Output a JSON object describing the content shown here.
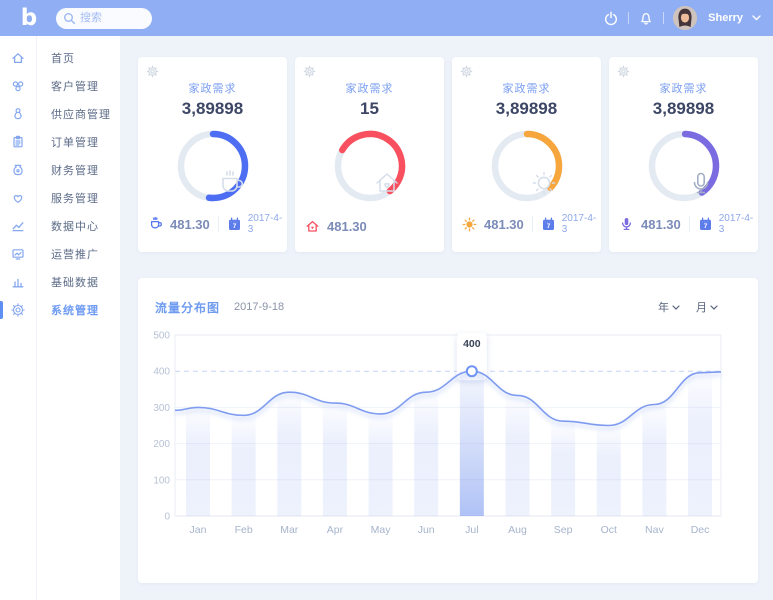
{
  "topbar": {
    "logo_text": "b",
    "search_placeholder": "搜索",
    "user_name": "Sherry"
  },
  "sidebar": {
    "items": [
      {
        "label": "首页",
        "icon": "home-icon",
        "active": false
      },
      {
        "label": "客户管理",
        "icon": "customers-icon",
        "active": false
      },
      {
        "label": "供应商管理",
        "icon": "supplier-icon",
        "active": false
      },
      {
        "label": "订单管理",
        "icon": "orders-icon",
        "active": false
      },
      {
        "label": "财务管理",
        "icon": "finance-icon",
        "active": false
      },
      {
        "label": "服务管理",
        "icon": "service-icon",
        "active": false
      },
      {
        "label": "数据中心",
        "icon": "data-center-icon",
        "active": false
      },
      {
        "label": "运营推广",
        "icon": "promotion-icon",
        "active": false
      },
      {
        "label": "基础数据",
        "icon": "base-data-icon",
        "active": false
      },
      {
        "label": "系统管理",
        "icon": "system-icon",
        "active": true
      }
    ]
  },
  "stat_cards": [
    {
      "title": "家政需求",
      "value": "3,89898",
      "metric": "481.30",
      "date": "2017-4-3",
      "accent": "#4D6EF2",
      "donut_percent": 52,
      "donut_start_deg": -90,
      "icon": "coffee-cup-icon"
    },
    {
      "title": "家政需求",
      "value": "15",
      "metric": "481.30",
      "date": "",
      "accent": "#F8505F",
      "donut_percent": 56,
      "donut_start_deg": -150,
      "icon": "home-heart-icon"
    },
    {
      "title": "家政需求",
      "value": "3,89898",
      "metric": "481.30",
      "date": "2017-4-3",
      "accent": "#F6A63C",
      "donut_percent": 37,
      "donut_start_deg": -90,
      "icon": "sun-icon"
    },
    {
      "title": "家政需求",
      "value": "3,89898",
      "metric": "481.30",
      "date": "2017-4-3",
      "accent": "#7A6BE0",
      "donut_percent": 40,
      "donut_start_deg": -88,
      "icon": "microphone-icon"
    }
  ],
  "chart": {
    "title": "流量分布图",
    "date": "2017-9-18",
    "filters": [
      {
        "label": "年"
      },
      {
        "label": "月"
      }
    ],
    "tooltip": {
      "month": "Jul",
      "value": "400"
    }
  },
  "chart_data": {
    "type": "area",
    "title": "流量分布图",
    "categories": [
      "Jan",
      "Feb",
      "Mar",
      "Apr",
      "May",
      "Jun",
      "Jul",
      "Aug",
      "Sep",
      "Oct",
      "Nav",
      "Dec"
    ],
    "values": [
      300,
      278,
      342,
      312,
      282,
      342,
      400,
      333,
      262,
      250,
      308,
      396
    ],
    "highlight_index": 6,
    "highlight_label": "400",
    "xlabel": "",
    "ylabel": "",
    "ylim": [
      0,
      500
    ],
    "yticks": [
      0,
      100,
      200,
      300,
      400,
      500
    ],
    "dashed_gridline_at": 400,
    "grid": true,
    "legend": false,
    "line_color": "#7E9BF0",
    "bar_color": "#8CA6F2"
  }
}
